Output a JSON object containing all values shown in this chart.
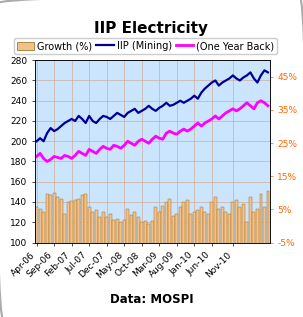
{
  "title": "IIP Electricity",
  "source": "Data: MOSPI",
  "plot_bg_color": "#cce5ff",
  "outer_bg_color": "#ffffff",
  "x_labels": [
    "Apr-06",
    "Sep-06",
    "Feb-07",
    "Jul-07",
    "Dec-07",
    "May-08",
    "Oct-08",
    "Mar-09",
    "Aug-09",
    "Jan-10",
    "Jun-10",
    "Nov-10"
  ],
  "x_tick_positions": [
    0,
    5,
    10,
    15,
    20,
    25,
    30,
    35,
    40,
    45,
    50,
    56
  ],
  "iip_mining": [
    200,
    203,
    200,
    208,
    213,
    210,
    212,
    215,
    218,
    220,
    222,
    220,
    225,
    222,
    218,
    225,
    220,
    218,
    222,
    225,
    224,
    222,
    225,
    228,
    226,
    224,
    228,
    230,
    232,
    228,
    230,
    232,
    235,
    232,
    230,
    233,
    235,
    238,
    235,
    236,
    238,
    240,
    238,
    240,
    242,
    245,
    242,
    248,
    252,
    255,
    258,
    260,
    255,
    258,
    260,
    262,
    265,
    262,
    260,
    263,
    265,
    268,
    262,
    258,
    265,
    270,
    268
  ],
  "one_year_back": [
    185,
    188,
    183,
    180,
    182,
    185,
    184,
    183,
    186,
    185,
    183,
    186,
    190,
    188,
    186,
    192,
    190,
    188,
    192,
    195,
    193,
    192,
    196,
    195,
    193,
    196,
    200,
    198,
    196,
    200,
    202,
    200,
    198,
    202,
    205,
    203,
    202,
    208,
    210,
    208,
    207,
    210,
    212,
    210,
    212,
    215,
    218,
    215,
    218,
    220,
    222,
    225,
    222,
    225,
    228,
    230,
    232,
    230,
    232,
    235,
    238,
    235,
    232,
    238,
    240,
    238,
    235
  ],
  "bars": [
    135,
    133,
    130,
    148,
    147,
    149,
    145,
    143,
    128,
    140,
    141,
    142,
    143,
    147,
    148,
    135,
    130,
    132,
    125,
    130,
    125,
    128,
    122,
    123,
    120,
    122,
    133,
    127,
    130,
    125,
    120,
    121,
    118,
    121,
    135,
    130,
    136,
    140,
    143,
    126,
    128,
    135,
    140,
    142,
    128,
    130,
    132,
    135,
    130,
    128,
    140,
    145,
    133,
    135,
    130,
    128,
    140,
    142,
    135,
    138,
    120,
    145,
    130,
    133,
    148,
    135,
    151
  ],
  "n_points": 67,
  "left_ylim": [
    100,
    280
  ],
  "left_yticks": [
    100,
    120,
    140,
    160,
    180,
    200,
    220,
    240,
    260,
    280
  ],
  "right_ylim": [
    -5,
    50
  ],
  "right_yticks": [
    -5,
    5,
    15,
    25,
    35,
    45
  ],
  "right_yticklabels": [
    "-5%",
    "5%",
    "15%",
    "25%",
    "35%",
    "45%"
  ],
  "iip_color": "#000099",
  "one_year_color": "#ff00ff",
  "bar_color": "#f4c08c",
  "bar_edge_color": "#8B6914",
  "right_tick_color": "#ff6600",
  "grid_color": "#d0a080",
  "title_fontsize": 11,
  "legend_fontsize": 7,
  "tick_fontsize": 6.5,
  "source_fontsize": 8.5
}
